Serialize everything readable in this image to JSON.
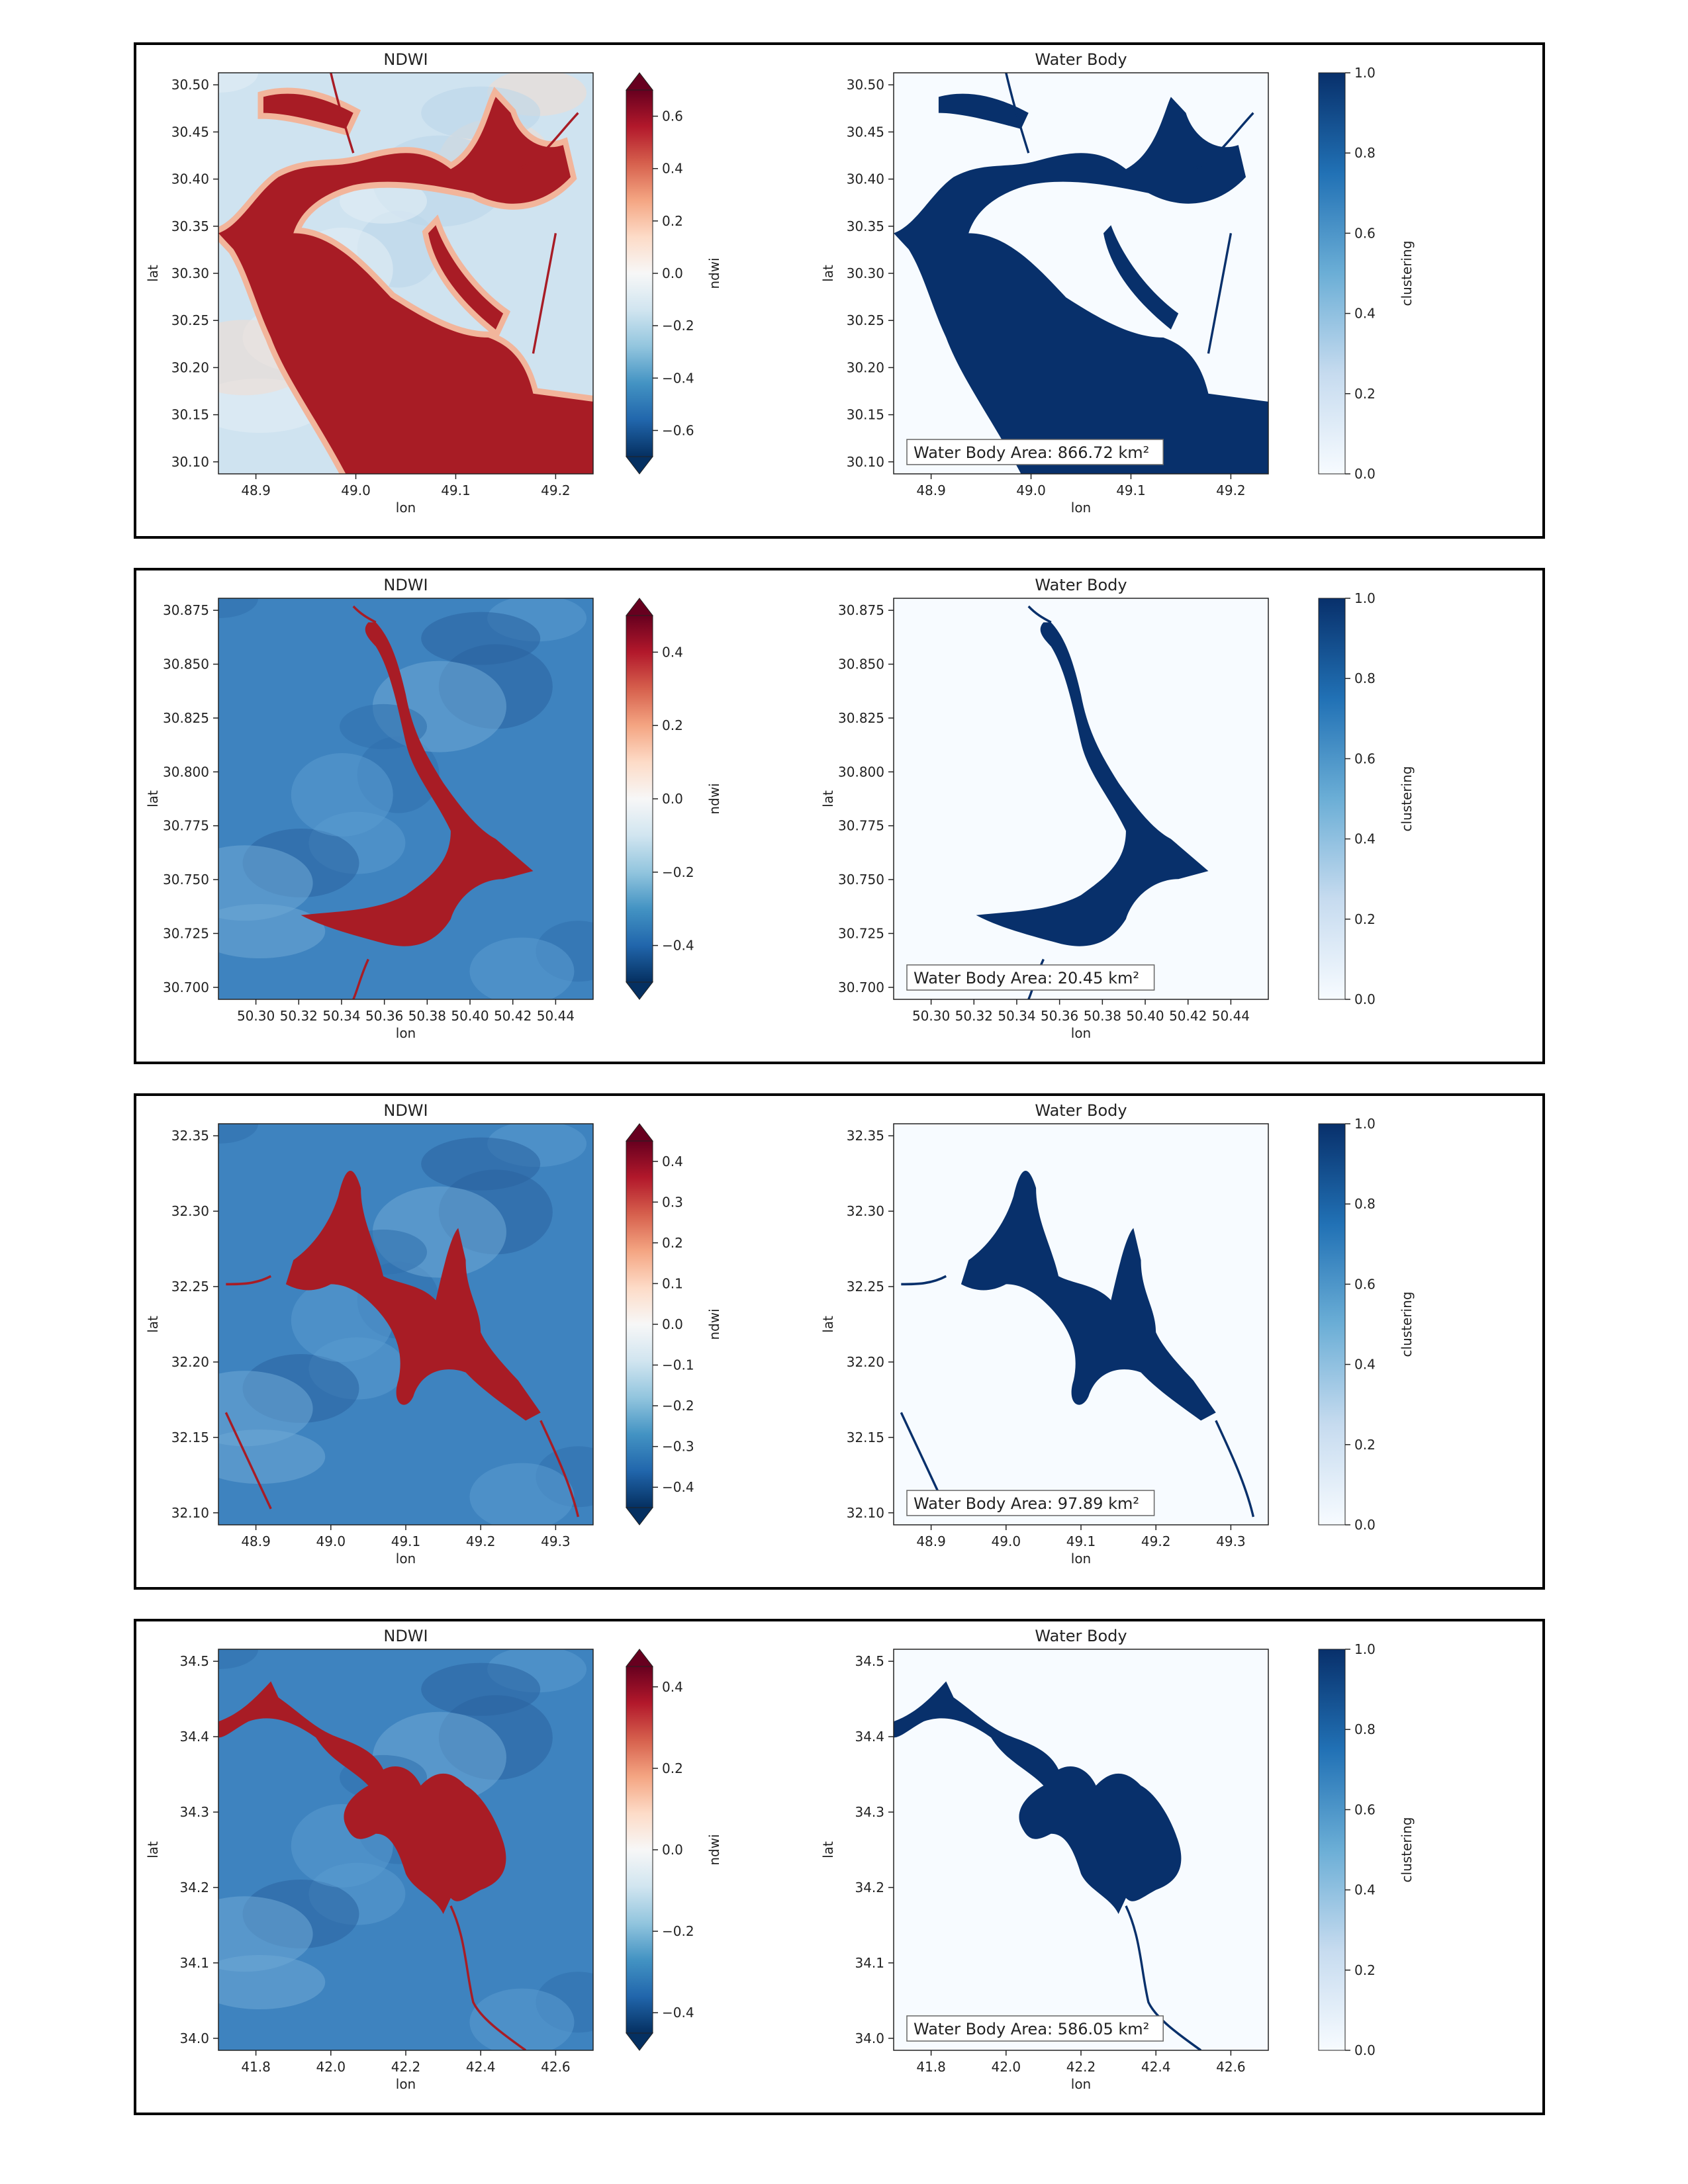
{
  "colors": {
    "ndwi_scale": [
      "#053061",
      "#2166ac",
      "#4393c3",
      "#92c5de",
      "#d1e5f0",
      "#f7f7f7",
      "#fddbc7",
      "#f4a582",
      "#d6604d",
      "#b2182b",
      "#67001f"
    ],
    "blues_scale": [
      "#f7fbff",
      "#c6dbef",
      "#6baed6",
      "#2171b5",
      "#08306b"
    ],
    "water": "#08306b",
    "ndwi_high": "#a81c25",
    "area_label": "#e8303a"
  },
  "chart_data": [
    {
      "type": "heatmap",
      "pair_index": 1,
      "ndwi": {
        "title": "NDWI",
        "xlabel": "lon",
        "ylabel": "lat",
        "x_ticks": [
          "48.9",
          "49.0",
          "49.1",
          "49.2"
        ],
        "y_ticks": [
          "30.50",
          "30.45",
          "30.40",
          "30.35",
          "30.30",
          "30.25",
          "30.20",
          "30.15",
          "30.10"
        ],
        "colorbar": {
          "label": "ndwi",
          "ticks": [
            "0.6",
            "0.4",
            "0.2",
            "0.0",
            "−0.2",
            "−0.4",
            "−0.6"
          ],
          "range": [
            -0.7,
            0.7
          ],
          "extend": "both"
        }
      },
      "water": {
        "title": "Water Body",
        "xlabel": "lon",
        "ylabel": "lat",
        "x_ticks": [
          "48.9",
          "49.0",
          "49.1",
          "49.2"
        ],
        "y_ticks": [
          "30.50",
          "30.45",
          "30.40",
          "30.35",
          "30.30",
          "30.25",
          "30.20",
          "30.15",
          "30.10"
        ],
        "colorbar": {
          "label": "clustering",
          "ticks": [
            "1.0",
            "0.8",
            "0.6",
            "0.4",
            "0.2",
            "0.0"
          ],
          "range": [
            0.0,
            1.0
          ]
        },
        "area_label": "Water Body Area: 866.72 km²"
      }
    },
    {
      "type": "heatmap",
      "pair_index": 2,
      "ndwi": {
        "title": "NDWI",
        "xlabel": "lon",
        "ylabel": "lat",
        "x_ticks": [
          "50.30",
          "50.32",
          "50.34",
          "50.36",
          "50.38",
          "50.40",
          "50.42",
          "50.44"
        ],
        "y_ticks": [
          "30.875",
          "30.850",
          "30.825",
          "30.800",
          "30.775",
          "30.750",
          "30.725",
          "30.700"
        ],
        "colorbar": {
          "label": "ndwi",
          "ticks": [
            "0.4",
            "0.2",
            "0.0",
            "−0.2",
            "−0.4"
          ],
          "range": [
            -0.5,
            0.5
          ],
          "extend": "both"
        }
      },
      "water": {
        "title": "Water Body",
        "xlabel": "lon",
        "ylabel": "lat",
        "x_ticks": [
          "50.30",
          "50.32",
          "50.34",
          "50.36",
          "50.38",
          "50.40",
          "50.42",
          "50.44"
        ],
        "y_ticks": [
          "30.875",
          "30.850",
          "30.825",
          "30.800",
          "30.775",
          "30.750",
          "30.725",
          "30.700"
        ],
        "colorbar": {
          "label": "clustering",
          "ticks": [
            "1.0",
            "0.8",
            "0.6",
            "0.4",
            "0.2",
            "0.0"
          ],
          "range": [
            0.0,
            1.0
          ]
        },
        "area_label": "Water Body Area: 20.45 km²"
      }
    },
    {
      "type": "heatmap",
      "pair_index": 3,
      "ndwi": {
        "title": "NDWI",
        "xlabel": "lon",
        "ylabel": "lat",
        "x_ticks": [
          "48.9",
          "49.0",
          "49.1",
          "49.2",
          "49.3"
        ],
        "y_ticks": [
          "32.35",
          "32.30",
          "32.25",
          "32.20",
          "32.15",
          "32.10"
        ],
        "colorbar": {
          "label": "ndwi",
          "ticks": [
            "0.4",
            "0.3",
            "0.2",
            "0.1",
            "0.0",
            "−0.1",
            "−0.2",
            "−0.3",
            "−0.4"
          ],
          "range": [
            -0.45,
            0.45
          ],
          "extend": "both"
        }
      },
      "water": {
        "title": "Water Body",
        "xlabel": "lon",
        "ylabel": "lat",
        "x_ticks": [
          "48.9",
          "49.0",
          "49.1",
          "49.2",
          "49.3"
        ],
        "y_ticks": [
          "32.35",
          "32.30",
          "32.25",
          "32.20",
          "32.15",
          "32.10"
        ],
        "colorbar": {
          "label": "clustering",
          "ticks": [
            "1.0",
            "0.8",
            "0.6",
            "0.4",
            "0.2",
            "0.0"
          ],
          "range": [
            0.0,
            1.0
          ]
        },
        "area_label": "Water Body Area: 97.89 km²"
      }
    },
    {
      "type": "heatmap",
      "pair_index": 4,
      "ndwi": {
        "title": "NDWI",
        "xlabel": "lon",
        "ylabel": "lat",
        "x_ticks": [
          "41.8",
          "42.0",
          "42.2",
          "42.4",
          "42.6"
        ],
        "y_ticks": [
          "34.5",
          "34.4",
          "34.3",
          "34.2",
          "34.1",
          "34.0"
        ],
        "colorbar": {
          "label": "ndwi",
          "ticks": [
            "0.4",
            "0.2",
            "0.0",
            "−0.2",
            "−0.4"
          ],
          "range": [
            -0.45,
            0.45
          ],
          "extend": "both"
        }
      },
      "water": {
        "title": "Water Body",
        "xlabel": "lon",
        "ylabel": "lat",
        "x_ticks": [
          "41.8",
          "42.0",
          "42.2",
          "42.4",
          "42.6"
        ],
        "y_ticks": [
          "34.5",
          "34.4",
          "34.3",
          "34.2",
          "34.1",
          "34.0"
        ],
        "colorbar": {
          "label": "clustering",
          "ticks": [
            "1.0",
            "0.8",
            "0.6",
            "0.4",
            "0.2",
            "0.0"
          ],
          "range": [
            0.0,
            1.0
          ]
        },
        "area_label": "Water Body Area: 586.05 km²"
      }
    }
  ]
}
